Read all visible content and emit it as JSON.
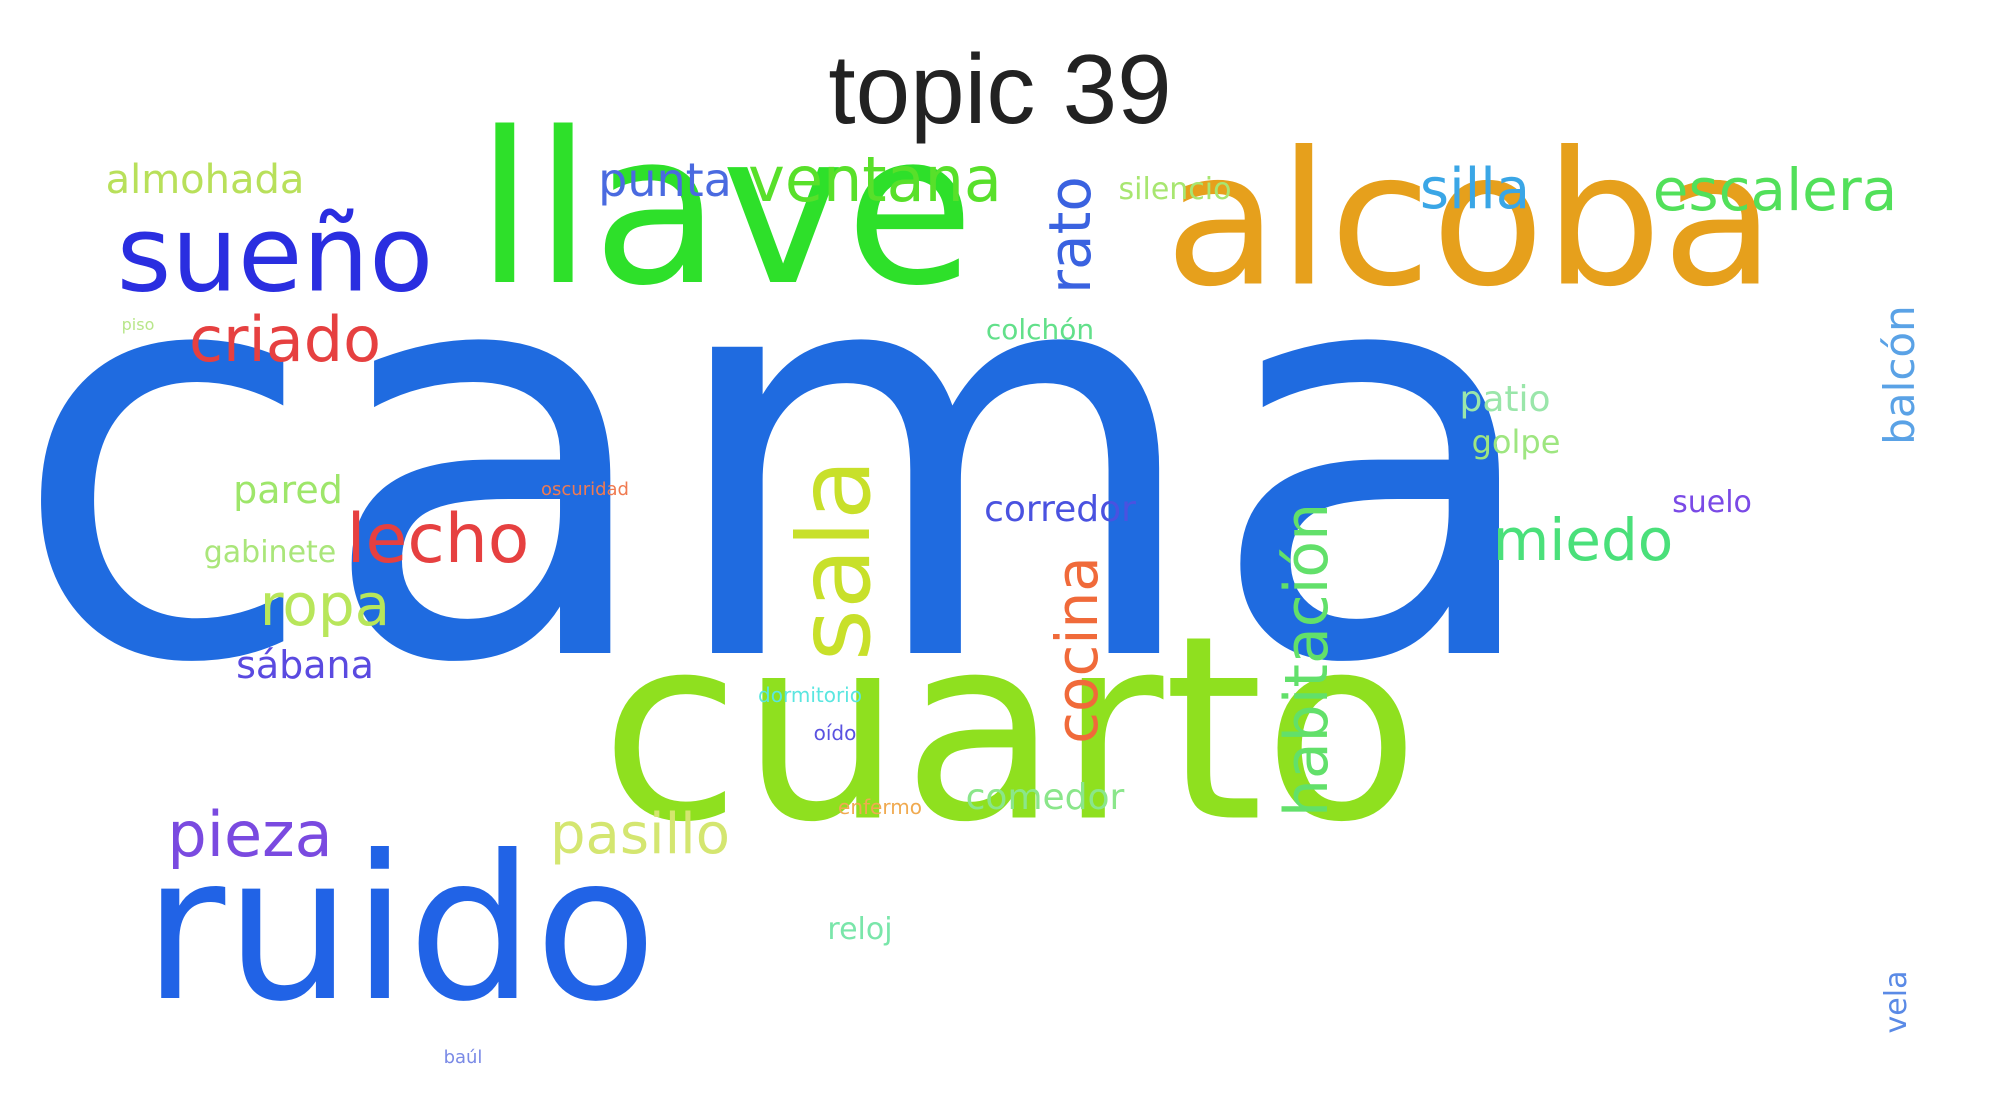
{
  "title": "topic 39",
  "words": [
    {
      "text": "cama",
      "color": "#1f6be0"
    },
    {
      "text": "cuarto",
      "color": "#8fe01f"
    },
    {
      "text": "llave",
      "color": "#2ee02a"
    },
    {
      "text": "alcoba",
      "color": "#e6a01c"
    },
    {
      "text": "ruido",
      "color": "#2163e6"
    },
    {
      "text": "sueño",
      "color": "#2a2ee0"
    },
    {
      "text": "sala",
      "color": "#c8e02a"
    },
    {
      "text": "criado",
      "color": "#e64040"
    },
    {
      "text": "ventana",
      "color": "#58e02a"
    },
    {
      "text": "escalera",
      "color": "#52e05a"
    },
    {
      "text": "almohada",
      "color": "#b8e05a"
    },
    {
      "text": "punta",
      "color": "#4a6ae0"
    },
    {
      "text": "silla",
      "color": "#3aa6e6"
    },
    {
      "text": "silencio",
      "color": "#a8e670"
    },
    {
      "text": "rato",
      "color": "#3a62e0"
    },
    {
      "text": "colchón",
      "color": "#62e08a"
    },
    {
      "text": "piso",
      "color": "#b8e68a"
    },
    {
      "text": "lecho",
      "color": "#e64040"
    },
    {
      "text": "ropa",
      "color": "#b8e65a"
    },
    {
      "text": "pared",
      "color": "#9ee66a"
    },
    {
      "text": "gabinete",
      "color": "#aae67a"
    },
    {
      "text": "oscuridad",
      "color": "#f07a50"
    },
    {
      "text": "sábana",
      "color": "#5a4ae0"
    },
    {
      "text": "pieza",
      "color": "#7a4ae0"
    },
    {
      "text": "pasillo",
      "color": "#d4e670"
    },
    {
      "text": "habitación",
      "color": "#62e06a"
    },
    {
      "text": "cocina",
      "color": "#f06a3a"
    },
    {
      "text": "corredor",
      "color": "#4a52e0"
    },
    {
      "text": "miedo",
      "color": "#4ae07a"
    },
    {
      "text": "patio",
      "color": "#9ae6aa"
    },
    {
      "text": "golpe",
      "color": "#9ee680"
    },
    {
      "text": "suelo",
      "color": "#7a4ae6"
    },
    {
      "text": "balcón",
      "color": "#5aa2e6"
    },
    {
      "text": "dormitorio",
      "color": "#5ae6e0"
    },
    {
      "text": "oído",
      "color": "#5a52e0"
    },
    {
      "text": "enfermo",
      "color": "#f0aa50"
    },
    {
      "text": "comedor",
      "color": "#8ae68a"
    },
    {
      "text": "reloj",
      "color": "#7ae6aa"
    },
    {
      "text": "baúl",
      "color": "#7a8ae6"
    },
    {
      "text": "vela",
      "color": "#5a8ae6"
    }
  ]
}
